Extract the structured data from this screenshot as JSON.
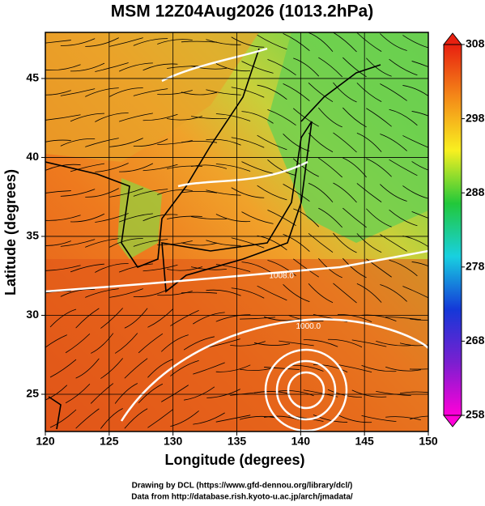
{
  "chart_data": {
    "type": "map",
    "title": "MSM 12Z04Aug2026 (1013.2hPa)",
    "x_label": "Longitude (degrees)",
    "y_label": "Latitude  (degrees)",
    "xlim": [
      120,
      150
    ],
    "ylim": [
      22.64,
      47.92
    ],
    "xticks": [
      120,
      125,
      130,
      135,
      140,
      145,
      150
    ],
    "yticks": [
      25,
      30,
      35,
      40,
      45
    ],
    "grid": true,
    "colorbar": {
      "lim": [
        258,
        308
      ],
      "ticks": [
        258,
        268,
        278,
        288,
        298,
        308
      ],
      "colors": [
        "#ff00d8",
        "#7a1fd0",
        "#1438d8",
        "#18d0e0",
        "#22c83a",
        "#f8f020",
        "#f48a18",
        "#e82010"
      ]
    },
    "annotations": [
      {
        "text": "1008.0",
        "x": 138.5,
        "y": 32.5
      },
      {
        "text": "1000.0",
        "x": 140.6,
        "y": 29.3
      }
    ],
    "footer": [
      "Drawing by DCL (https://www.gfd-dennou.org/library/dcl/)",
      "Data from http://database.rish.kyoto-u.ac.jp/arch/jmadata/"
    ]
  }
}
